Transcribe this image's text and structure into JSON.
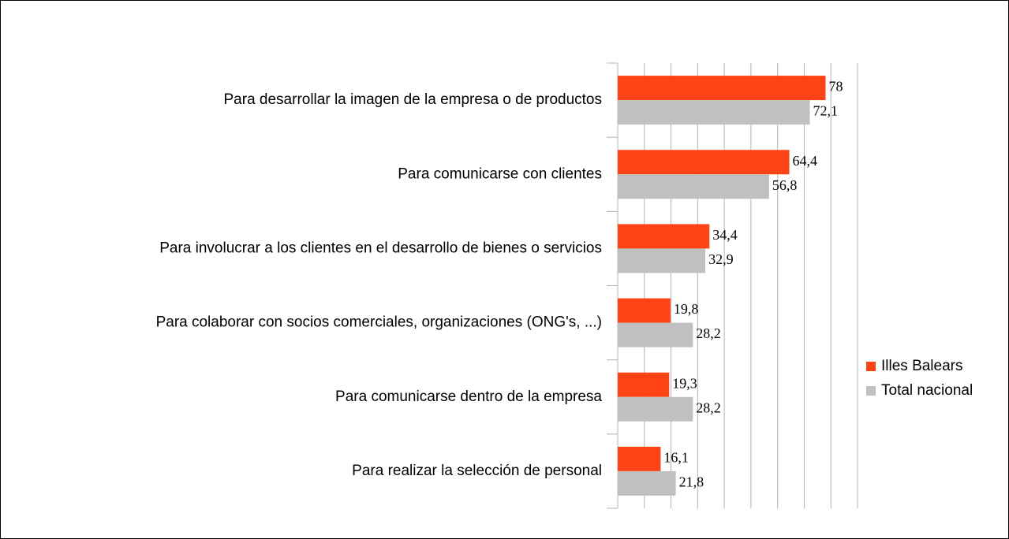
{
  "chart_data": {
    "type": "hbar",
    "categories": [
      "Para desarrollar la imagen de la empresa o de productos",
      "Para comunicarse con clientes",
      "Para involucrar a los clientes en el desarrollo de bienes o servicios",
      "Para colaborar con socios comerciales, organizaciones (ONG's, ...)",
      "Para comunicarse dentro de la empresa",
      "Para realizar la selección de personal"
    ],
    "series": [
      {
        "name": "Illes Balears",
        "color": "#ff4314",
        "values": [
          78,
          64.4,
          34.4,
          19.8,
          19.3,
          16.1
        ],
        "value_labels": [
          "78",
          "64,4",
          "34,4",
          "19,8",
          "19,3",
          "16,1"
        ]
      },
      {
        "name": "Total nacional",
        "color": "#c0c0c0",
        "values": [
          72.1,
          56.8,
          32.9,
          28.2,
          28.2,
          21.8
        ],
        "value_labels": [
          "72,1",
          "56,8",
          "32,9",
          "28,2",
          "28,2",
          "21,8"
        ]
      }
    ],
    "xlim": [
      0,
      90
    ],
    "xticks": [
      0,
      10,
      20,
      30,
      40,
      50,
      60,
      70,
      80,
      90
    ],
    "grid": true,
    "legend": "right"
  }
}
